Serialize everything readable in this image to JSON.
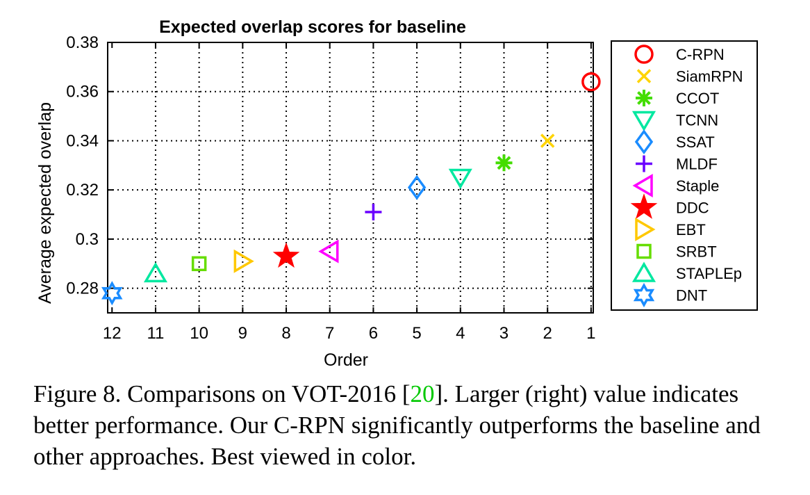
{
  "chart_data": {
    "type": "scatter",
    "title": "Expected overlap scores for baseline",
    "xlabel": "Order",
    "ylabel": "Average expected overlap",
    "x_ticks": [
      "12",
      "11",
      "10",
      "9",
      "8",
      "7",
      "6",
      "5",
      "4",
      "3",
      "2",
      "1"
    ],
    "y_ticks": [
      "0.38",
      "0.36",
      "0.34",
      "0.32",
      "0.3",
      "0.28"
    ],
    "x_range": [
      12.1,
      0.95
    ],
    "ylim": [
      0.27,
      0.38
    ],
    "x_reversed": true,
    "grid": true,
    "legend_position": "right",
    "series": [
      {
        "name": "C-RPN",
        "order": 1,
        "value": 0.364,
        "color": "#ff0000",
        "marker": "circle"
      },
      {
        "name": "SiamRPN",
        "order": 2,
        "value": 0.34,
        "color": "#ffd400",
        "marker": "x"
      },
      {
        "name": "CCOT",
        "order": 3,
        "value": 0.331,
        "color": "#44dd00",
        "marker": "asterisk"
      },
      {
        "name": "TCNN",
        "order": 4,
        "value": 0.325,
        "color": "#00e8a0",
        "marker": "triangle-down"
      },
      {
        "name": "SSAT",
        "order": 5,
        "value": 0.321,
        "color": "#1a8cff",
        "marker": "diamond"
      },
      {
        "name": "MLDF",
        "order": 6,
        "value": 0.311,
        "color": "#6a00ff",
        "marker": "plus"
      },
      {
        "name": "Staple",
        "order": 7,
        "value": 0.295,
        "color": "#ff00ff",
        "marker": "triangle-left"
      },
      {
        "name": "DDC",
        "order": 8,
        "value": 0.293,
        "color": "#ff0000",
        "marker": "star"
      },
      {
        "name": "EBT",
        "order": 9,
        "value": 0.291,
        "color": "#ffc800",
        "marker": "triangle-right"
      },
      {
        "name": "SRBT",
        "order": 10,
        "value": 0.29,
        "color": "#66dd00",
        "marker": "square"
      },
      {
        "name": "STAPLEp",
        "order": 11,
        "value": 0.286,
        "color": "#00e8a0",
        "marker": "triangle-up"
      },
      {
        "name": "DNT",
        "order": 12,
        "value": 0.278,
        "color": "#1a8cff",
        "marker": "hexagram"
      }
    ]
  },
  "caption": {
    "text_before": "Figure 8. Comparisons on VOT-2016 [",
    "ref": "20",
    "text_after": "]. Larger (right) value indicates better performance. Our C-RPN significantly outperforms the baseline and other approaches. Best viewed in color."
  }
}
